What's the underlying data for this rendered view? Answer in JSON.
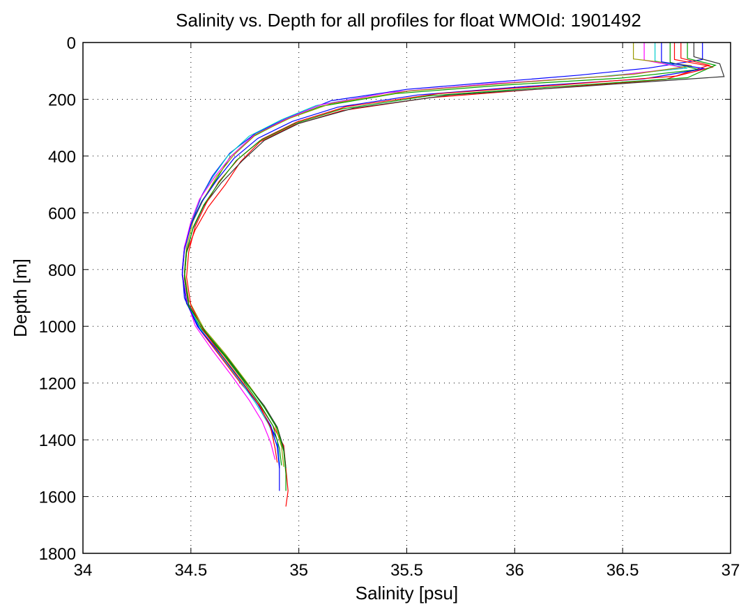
{
  "chart_data": {
    "type": "line",
    "title": "Salinity vs. Depth for all profiles for float WMOId: 1901492",
    "xlabel": "Salinity [psu]",
    "ylabel": "Depth [m]",
    "xlim": [
      34,
      37
    ],
    "ylim": [
      0,
      1800
    ],
    "y_reversed": true,
    "grid": true,
    "legend": "none",
    "x_ticks": [
      "34",
      "34.5",
      "35",
      "35.5",
      "36",
      "36.5",
      "37"
    ],
    "y_ticks": [
      "0",
      "200",
      "400",
      "600",
      "800",
      "1000",
      "1200",
      "1400",
      "1600",
      "1800"
    ],
    "series": [
      {
        "color": "#0000ff",
        "points": [
          [
            36.87,
            0
          ],
          [
            36.87,
            60
          ],
          [
            36.62,
            90
          ],
          [
            36.3,
            115
          ],
          [
            35.9,
            140
          ],
          [
            35.5,
            165
          ],
          [
            35.15,
            205
          ],
          [
            34.95,
            265
          ],
          [
            34.8,
            320
          ],
          [
            34.68,
            390
          ],
          [
            34.6,
            470
          ],
          [
            34.55,
            540
          ],
          [
            34.51,
            620
          ],
          [
            34.47,
            720
          ],
          [
            34.46,
            800
          ],
          [
            34.47,
            900
          ],
          [
            34.53,
            1000
          ],
          [
            34.62,
            1090
          ],
          [
            34.72,
            1180
          ],
          [
            34.8,
            1260
          ],
          [
            34.86,
            1340
          ],
          [
            34.9,
            1400
          ],
          [
            34.91,
            1480
          ],
          [
            34.91,
            1580
          ]
        ]
      },
      {
        "color": "#ff0000",
        "points": [
          [
            36.77,
            0
          ],
          [
            36.77,
            55
          ],
          [
            36.9,
            80
          ],
          [
            36.7,
            130
          ],
          [
            36.1,
            165
          ],
          [
            35.6,
            195
          ],
          [
            35.2,
            240
          ],
          [
            34.98,
            290
          ],
          [
            34.82,
            350
          ],
          [
            34.73,
            420
          ],
          [
            34.66,
            500
          ],
          [
            34.58,
            580
          ],
          [
            34.52,
            660
          ],
          [
            34.48,
            740
          ],
          [
            34.47,
            830
          ],
          [
            34.49,
            930
          ],
          [
            34.55,
            1020
          ],
          [
            34.64,
            1110
          ],
          [
            34.73,
            1200
          ],
          [
            34.82,
            1280
          ],
          [
            34.88,
            1350
          ],
          [
            34.93,
            1420
          ],
          [
            34.94,
            1500
          ],
          [
            34.95,
            1580
          ],
          [
            34.94,
            1635
          ]
        ]
      },
      {
        "color": "#00a000",
        "points": [
          [
            36.72,
            0
          ],
          [
            36.72,
            70
          ],
          [
            36.85,
            95
          ],
          [
            36.5,
            125
          ],
          [
            35.95,
            150
          ],
          [
            35.45,
            180
          ],
          [
            35.1,
            225
          ],
          [
            34.93,
            275
          ],
          [
            34.78,
            335
          ],
          [
            34.68,
            405
          ],
          [
            34.62,
            480
          ],
          [
            34.55,
            560
          ],
          [
            34.5,
            640
          ],
          [
            34.47,
            730
          ],
          [
            34.46,
            820
          ],
          [
            34.48,
            920
          ],
          [
            34.55,
            1010
          ],
          [
            34.65,
            1100
          ],
          [
            34.74,
            1190
          ],
          [
            34.82,
            1275
          ],
          [
            34.88,
            1350
          ],
          [
            34.91,
            1430
          ],
          [
            34.92,
            1490
          ]
        ]
      },
      {
        "color": "#00cccc",
        "points": [
          [
            36.65,
            0
          ],
          [
            36.65,
            65
          ],
          [
            36.8,
            90
          ],
          [
            36.4,
            120
          ],
          [
            35.85,
            148
          ],
          [
            35.4,
            178
          ],
          [
            35.08,
            222
          ],
          [
            34.92,
            272
          ],
          [
            34.77,
            330
          ],
          [
            34.67,
            400
          ],
          [
            34.6,
            476
          ],
          [
            34.54,
            555
          ],
          [
            34.5,
            636
          ],
          [
            34.47,
            726
          ],
          [
            34.46,
            812
          ],
          [
            34.48,
            912
          ],
          [
            34.54,
            1005
          ],
          [
            34.63,
            1095
          ],
          [
            34.72,
            1185
          ],
          [
            34.8,
            1270
          ],
          [
            34.86,
            1345
          ],
          [
            34.9,
            1420
          ],
          [
            34.91,
            1480
          ]
        ]
      },
      {
        "color": "#ff00ff",
        "points": [
          [
            36.6,
            0
          ],
          [
            36.6,
            62
          ],
          [
            36.78,
            88
          ],
          [
            36.45,
            118
          ],
          [
            35.9,
            145
          ],
          [
            35.42,
            176
          ],
          [
            35.1,
            220
          ],
          [
            34.94,
            270
          ],
          [
            34.79,
            328
          ],
          [
            34.69,
            398
          ],
          [
            34.61,
            474
          ],
          [
            34.54,
            552
          ],
          [
            34.5,
            632
          ],
          [
            34.47,
            722
          ],
          [
            34.46,
            810
          ],
          [
            34.48,
            905
          ],
          [
            34.52,
            998
          ],
          [
            34.6,
            1085
          ],
          [
            34.69,
            1175
          ],
          [
            34.77,
            1260
          ],
          [
            34.83,
            1335
          ],
          [
            34.87,
            1410
          ],
          [
            34.89,
            1470
          ]
        ]
      },
      {
        "color": "#999900",
        "points": [
          [
            36.55,
            0
          ],
          [
            36.55,
            58
          ],
          [
            36.82,
            82
          ],
          [
            36.55,
            112
          ],
          [
            36.0,
            142
          ],
          [
            35.5,
            172
          ],
          [
            35.15,
            215
          ],
          [
            34.96,
            266
          ],
          [
            34.8,
            325
          ],
          [
            34.7,
            395
          ],
          [
            34.62,
            472
          ],
          [
            34.56,
            550
          ],
          [
            34.51,
            630
          ],
          [
            34.48,
            720
          ],
          [
            34.47,
            808
          ],
          [
            34.49,
            908
          ],
          [
            34.56,
            1008
          ],
          [
            34.66,
            1098
          ],
          [
            34.75,
            1188
          ],
          [
            34.83,
            1272
          ],
          [
            34.89,
            1348
          ],
          [
            34.92,
            1425
          ],
          [
            34.93,
            1495
          ]
        ]
      },
      {
        "color": "#333333",
        "points": [
          [
            36.83,
            0
          ],
          [
            36.83,
            50
          ],
          [
            36.95,
            75
          ],
          [
            36.97,
            120
          ],
          [
            36.3,
            155
          ],
          [
            35.7,
            185
          ],
          [
            35.25,
            232
          ],
          [
            35.0,
            285
          ],
          [
            34.84,
            345
          ],
          [
            34.74,
            415
          ],
          [
            34.64,
            495
          ],
          [
            34.56,
            575
          ],
          [
            34.51,
            655
          ],
          [
            34.48,
            735
          ],
          [
            34.47,
            822
          ],
          [
            34.49,
            922
          ],
          [
            34.56,
            1015
          ],
          [
            34.66,
            1105
          ],
          [
            34.75,
            1195
          ],
          [
            34.84,
            1280
          ],
          [
            34.9,
            1355
          ],
          [
            34.93,
            1430
          ],
          [
            34.94,
            1500
          ]
        ]
      },
      {
        "color": "#0000ff",
        "points": [
          [
            36.68,
            0
          ],
          [
            36.68,
            68
          ],
          [
            36.88,
            92
          ],
          [
            36.6,
            128
          ],
          [
            36.05,
            155
          ],
          [
            35.55,
            185
          ],
          [
            35.18,
            228
          ],
          [
            34.97,
            278
          ],
          [
            34.81,
            338
          ],
          [
            34.7,
            408
          ],
          [
            34.62,
            485
          ],
          [
            34.55,
            562
          ],
          [
            34.5,
            642
          ],
          [
            34.47,
            732
          ],
          [
            34.46,
            818
          ],
          [
            34.48,
            918
          ],
          [
            34.54,
            1010
          ],
          [
            34.64,
            1100
          ],
          [
            34.73,
            1190
          ],
          [
            34.81,
            1274
          ],
          [
            34.87,
            1350
          ],
          [
            34.9,
            1425
          ],
          [
            34.91,
            1500
          ]
        ]
      },
      {
        "color": "#ff0000",
        "points": [
          [
            36.74,
            0
          ],
          [
            36.74,
            60
          ],
          [
            36.92,
            86
          ],
          [
            36.75,
            118
          ],
          [
            36.2,
            150
          ],
          [
            35.65,
            180
          ],
          [
            35.22,
            226
          ],
          [
            34.99,
            280
          ],
          [
            34.83,
            340
          ],
          [
            34.72,
            410
          ],
          [
            34.63,
            490
          ],
          [
            34.57,
            568
          ],
          [
            34.52,
            648
          ],
          [
            34.49,
            738
          ],
          [
            34.48,
            826
          ],
          [
            34.5,
            926
          ],
          [
            34.56,
            1018
          ],
          [
            34.65,
            1108
          ],
          [
            34.74,
            1198
          ],
          [
            34.82,
            1282
          ],
          [
            34.87,
            1358
          ],
          [
            34.89,
            1430
          ],
          [
            34.9,
            1480
          ]
        ]
      },
      {
        "color": "#00a000",
        "points": [
          [
            36.8,
            0
          ],
          [
            36.8,
            56
          ],
          [
            36.93,
            80
          ],
          [
            36.8,
            124
          ],
          [
            36.15,
            158
          ],
          [
            35.6,
            188
          ],
          [
            35.2,
            234
          ],
          [
            34.98,
            286
          ],
          [
            34.82,
            346
          ],
          [
            34.71,
            416
          ],
          [
            34.63,
            494
          ],
          [
            34.56,
            572
          ],
          [
            34.51,
            652
          ],
          [
            34.48,
            742
          ],
          [
            34.47,
            830
          ],
          [
            34.49,
            930
          ],
          [
            34.57,
            1022
          ],
          [
            34.67,
            1112
          ],
          [
            34.76,
            1202
          ],
          [
            34.84,
            1286
          ],
          [
            34.9,
            1360
          ],
          [
            34.93,
            1440
          ],
          [
            34.94,
            1520
          ],
          [
            34.94,
            1580
          ]
        ]
      }
    ]
  }
}
